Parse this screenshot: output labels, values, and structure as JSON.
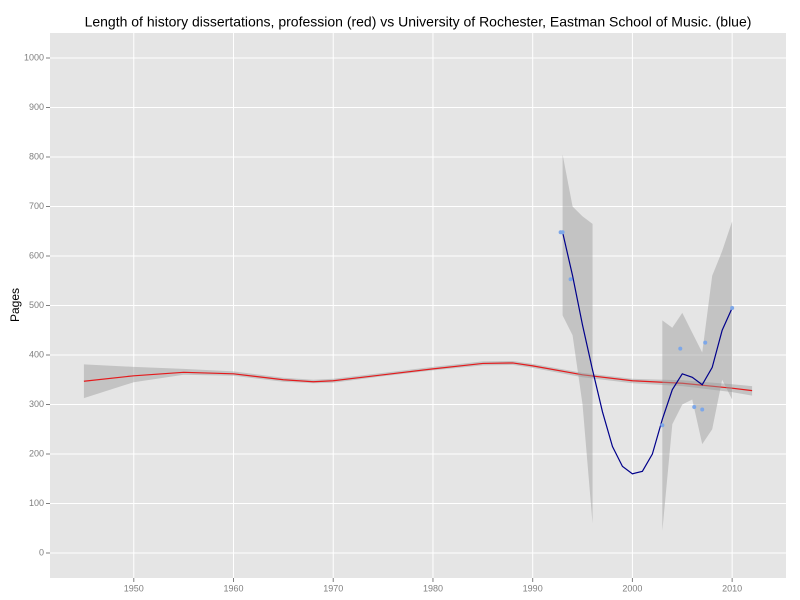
{
  "chart_data": {
    "type": "line",
    "title": "Length of history dissertations, profession (red) vs University of Rochester, Eastman School of Music. (blue)",
    "y_label": "Pages",
    "xlim": [
      1941.6,
      2015.4
    ],
    "ylim": [
      -50.5,
      1050.5
    ],
    "xticks": [
      1950,
      1960,
      1970,
      1980,
      1990,
      2000,
      2010
    ],
    "yticks": [
      0,
      100,
      200,
      300,
      400,
      500,
      600,
      700,
      800,
      900,
      1000
    ],
    "grid": true,
    "series": [
      {
        "type": "line",
        "color": "#e41a1c",
        "x": [
          1945,
          1950,
          1955,
          1960,
          1965,
          1968,
          1970,
          1975,
          1980,
          1985,
          1988,
          1990,
          1995,
          2000,
          2005,
          2010,
          2012
        ],
        "values": [
          347,
          358,
          365,
          362,
          350,
          346,
          348,
          360,
          372,
          383,
          384,
          378,
          360,
          348,
          343,
          333,
          328
        ],
        "band_lower": [
          313,
          345,
          360,
          358,
          346,
          343,
          344,
          357,
          369,
          379,
          380,
          374,
          355,
          343,
          337,
          325,
          318
        ],
        "band_upper": [
          381,
          376,
          372,
          367,
          354,
          350,
          352,
          364,
          376,
          387,
          388,
          382,
          364,
          352,
          349,
          341,
          337
        ]
      },
      {
        "type": "line",
        "color": "#00008b",
        "x": [
          1993,
          1994,
          1995,
          1996,
          1997,
          1998,
          1999,
          2000,
          2001,
          2002,
          2003,
          2004,
          2005,
          2006,
          2007,
          2008,
          2009,
          2010
        ],
        "values": [
          648,
          560,
          460,
          370,
          285,
          215,
          175,
          160,
          165,
          200,
          270,
          330,
          362,
          355,
          340,
          375,
          450,
          495
        ],
        "band_lower": [
          480,
          440,
          300,
          60,
          null,
          null,
          null,
          null,
          null,
          null,
          45,
          260,
          300,
          310,
          220,
          250,
          350,
          310
        ],
        "band_upper": [
          805,
          700,
          680,
          665,
          null,
          null,
          null,
          null,
          null,
          null,
          470,
          455,
          485,
          445,
          405,
          560,
          610,
          670
        ]
      },
      {
        "type": "scatter",
        "color": "#7da7e8",
        "x": [
          1992.8,
          1993,
          1993.8,
          2003,
          2004.8,
          2006.2,
          2007,
          2007.3,
          2010
        ],
        "values": [
          648,
          648,
          553,
          258,
          413,
          295,
          290,
          425,
          495
        ]
      }
    ]
  }
}
